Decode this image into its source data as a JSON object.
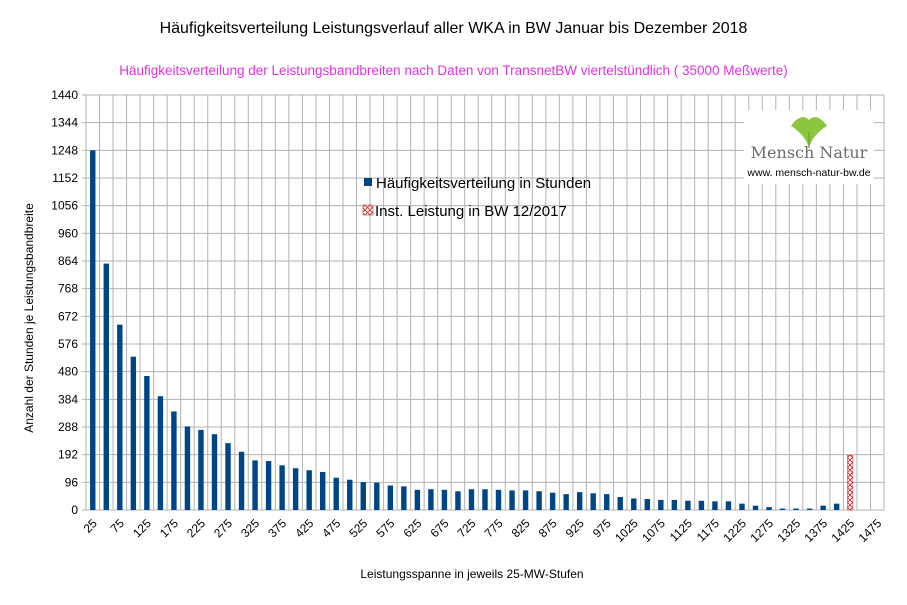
{
  "chart_data": {
    "type": "bar",
    "title": "Häufigkeitsverteilung Leistungsverlauf aller WKA in BW Januar bis Dezember 2018",
    "subtitle": "Häufigkeitsverteilung der Leistungsbandbreiten nach Daten von TransnetBW viertelstündlich ( 35000 Meßwerte)",
    "xlabel": "Leistungsspanne in jeweils 25-MW-Stufen",
    "ylabel": "Anzahl der Stunden je Leistungsbandbreite",
    "ylim": [
      0,
      1440
    ],
    "yticks": [
      0,
      96,
      192,
      288,
      384,
      480,
      576,
      672,
      768,
      864,
      960,
      1056,
      1152,
      1248,
      1344,
      1440
    ],
    "categories": [
      25,
      50,
      75,
      100,
      125,
      150,
      175,
      200,
      225,
      250,
      275,
      300,
      325,
      350,
      375,
      400,
      425,
      450,
      475,
      500,
      525,
      550,
      575,
      600,
      625,
      650,
      675,
      700,
      725,
      750,
      775,
      800,
      825,
      850,
      875,
      900,
      925,
      950,
      975,
      1000,
      1025,
      1050,
      1075,
      1100,
      1125,
      1150,
      1175,
      1200,
      1225,
      1250,
      1275,
      1300,
      1325,
      1350,
      1375,
      1400,
      1425,
      1450,
      1475
    ],
    "xtick_labels": [
      "25",
      "75",
      "125",
      "175",
      "225",
      "275",
      "325",
      "375",
      "425",
      "475",
      "525",
      "575",
      "625",
      "675",
      "725",
      "775",
      "825",
      "875",
      "925",
      "975",
      "1025",
      "1075",
      "1125",
      "1175",
      "1225",
      "1275",
      "1325",
      "1375",
      "1425",
      "1475"
    ],
    "series": [
      {
        "name": "Häufigkeitsverteilung in Stunden",
        "color": "#004586",
        "values": [
          1248,
          855,
          643,
          532,
          465,
          395,
          342,
          290,
          278,
          263,
          232,
          202,
          172,
          170,
          155,
          145,
          138,
          132,
          112,
          105,
          97,
          95,
          85,
          82,
          70,
          72,
          70,
          65,
          72,
          72,
          70,
          68,
          68,
          65,
          60,
          55,
          62,
          58,
          55,
          45,
          40,
          38,
          35,
          35,
          32,
          32,
          30,
          30,
          22,
          15,
          10,
          5,
          5,
          5,
          15,
          22,
          0,
          0,
          0
        ]
      },
      {
        "name": "Inst. Leistung in BW 12/2017",
        "color": "#c9211e",
        "values": [
          0,
          0,
          0,
          0,
          0,
          0,
          0,
          0,
          0,
          0,
          0,
          0,
          0,
          0,
          0,
          0,
          0,
          0,
          0,
          0,
          0,
          0,
          0,
          0,
          0,
          0,
          0,
          0,
          0,
          0,
          0,
          0,
          0,
          0,
          0,
          0,
          0,
          0,
          0,
          0,
          0,
          0,
          0,
          0,
          0,
          0,
          0,
          0,
          0,
          0,
          0,
          0,
          0,
          0,
          0,
          0,
          190,
          0,
          0
        ]
      }
    ],
    "grid": true,
    "legend_position": "top-center",
    "title_color": "#000000",
    "subtitle_color": "#e032e0"
  },
  "logo": {
    "brand": "Mensch Natur",
    "url": "www. mensch-natur-bw.de",
    "icon": "ginkgo-leaf-icon",
    "leaf_color": "#8cc63f"
  }
}
